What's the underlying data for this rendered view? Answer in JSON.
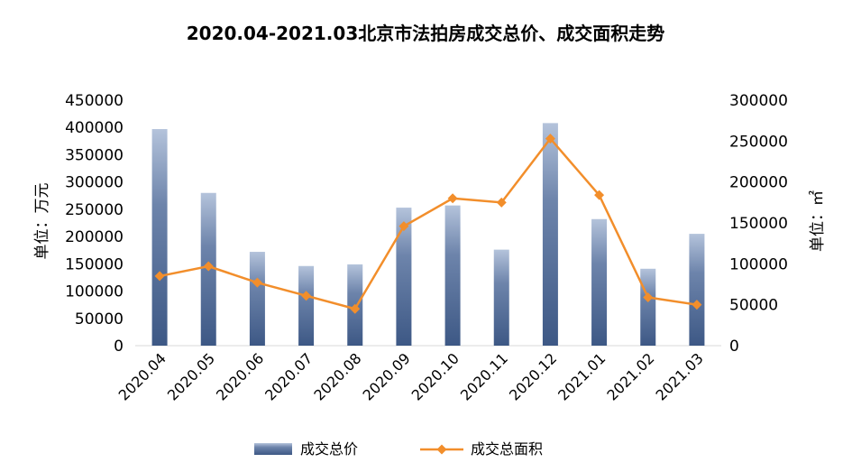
{
  "chart_data": {
    "type": "bar",
    "title": "2020.04-2021.03北京市法拍房成交总价、成交面积走势",
    "categories": [
      "2020.04",
      "2020.05",
      "2020.06",
      "2020.07",
      "2020.08",
      "2020.09",
      "2020.10",
      "2020.11",
      "2020.12",
      "2021.01",
      "2021.02",
      "2021.03"
    ],
    "y_left": {
      "label": "单位：万元",
      "range": [
        0,
        450000
      ],
      "ticks": [
        "0",
        "50000",
        "100000",
        "150000",
        "200000",
        "250000",
        "300000",
        "350000",
        "400000",
        "450000"
      ]
    },
    "y_right": {
      "label": "单位：㎡",
      "range": [
        0,
        300000
      ],
      "ticks": [
        "0",
        "50000",
        "100000",
        "150000",
        "200000",
        "250000",
        "300000"
      ]
    },
    "series": [
      {
        "name": "成交总价",
        "type": "bar",
        "axis": "left",
        "color": "#4a6591",
        "values": [
          397000,
          280000,
          172000,
          146000,
          149000,
          253000,
          257000,
          176000,
          408000,
          232000,
          141000,
          205000
        ]
      },
      {
        "name": "成交总面积",
        "type": "line",
        "axis": "right",
        "color": "#f28e2b",
        "values": [
          85000,
          97000,
          77000,
          61000,
          45000,
          146000,
          180000,
          175000,
          253000,
          184000,
          59000,
          50000
        ]
      }
    ],
    "legend_position": "bottom",
    "grid": false
  }
}
